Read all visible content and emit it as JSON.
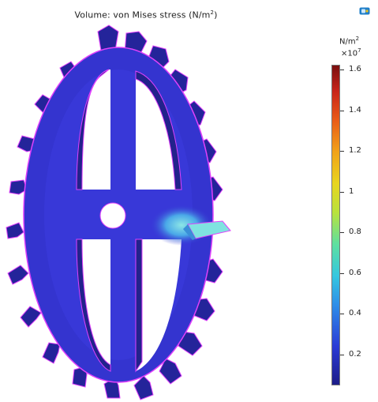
{
  "plot": {
    "title_prefix": "Volume: von Mises stress (N/m",
    "title_exp": "2",
    "title_suffix": ")"
  },
  "colorbar": {
    "unit_base": "N/m",
    "unit_exp": "2",
    "multiplier_base": "×10",
    "multiplier_exp": "7",
    "ticks": [
      "1.6",
      "1.4",
      "1.2",
      "1",
      "0.8",
      "0.6",
      "0.4",
      "0.2"
    ],
    "colormap": [
      "#1c1c88",
      "#2a3bd6",
      "#2f8ee8",
      "#35c7e0",
      "#5ee0a0",
      "#b9e23c",
      "#e8d51e",
      "#f1a21a",
      "#e95a18",
      "#c8241a",
      "#7a0f0f"
    ]
  },
  "icons": {
    "corner": "comsol-logo-icon"
  },
  "colors": {
    "gear_face": "#3535d2",
    "gear_side": "#24249a",
    "edge": "#e040fb",
    "stress_hot": "#7fe3e0"
  }
}
